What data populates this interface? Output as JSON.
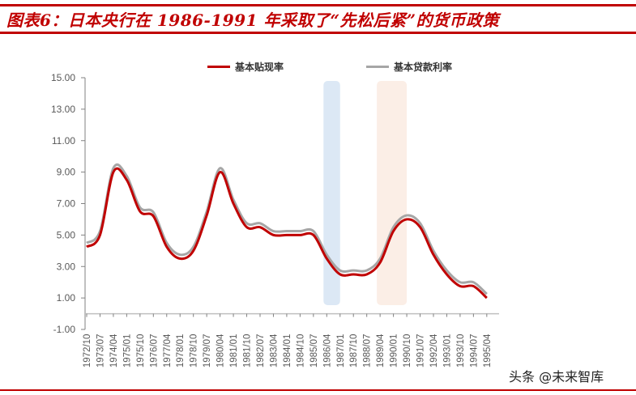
{
  "title": "图表6：日本央行在 1986-1991 年采取了“先松后紧”的货币政策",
  "watermark": "头条 @未来智库",
  "colors": {
    "accent": "#c00000",
    "series1": "#c00000",
    "series2": "#a6a6a6",
    "band_easing": "#dce8f5",
    "band_tightening": "#fbeee6",
    "axis": "#808080",
    "tick_text": "#595959"
  },
  "chart_data": {
    "type": "line",
    "title": "图表6：日本央行在 1986-1991 年采取了“先松后紧”的货币政策",
    "xlabel": "",
    "ylabel": "",
    "ylim": [
      -1,
      15
    ],
    "yticks": [
      "15.00",
      "13.00",
      "11.00",
      "9.00",
      "7.00",
      "5.00",
      "3.00",
      "1.00",
      "-1.00"
    ],
    "grid": false,
    "legend_position": "top",
    "categories": [
      "1972/10",
      "1973/07",
      "1974/04",
      "1975/01",
      "1975/10",
      "1976/07",
      "1977/04",
      "1978/01",
      "1978/10",
      "1979/07",
      "1980/04",
      "1981/01",
      "1981/10",
      "1982/07",
      "1983/04",
      "1984/01",
      "1984/10",
      "1985/07",
      "1986/04",
      "1987/01",
      "1987/10",
      "1988/07",
      "1989/04",
      "1990/01",
      "1990/10",
      "1991/07",
      "1992/04",
      "1993/01",
      "1993/10",
      "1994/07",
      "1995/04"
    ],
    "series": [
      {
        "name": "基本贴现率",
        "color": "#c00000",
        "values": [
          4.25,
          5.0,
          9.0,
          8.5,
          6.5,
          6.2,
          4.25,
          3.5,
          4.0,
          6.25,
          9.0,
          7.0,
          5.5,
          5.5,
          5.0,
          5.0,
          5.0,
          5.0,
          3.5,
          2.5,
          2.5,
          2.5,
          3.25,
          5.25,
          6.0,
          5.5,
          3.75,
          2.5,
          1.75,
          1.75,
          1.0
        ]
      },
      {
        "name": "基本贷款利率",
        "color": "#a6a6a6",
        "values": [
          4.5,
          5.25,
          9.25,
          8.75,
          6.75,
          6.45,
          4.5,
          3.75,
          4.25,
          6.5,
          9.25,
          7.25,
          5.75,
          5.75,
          5.25,
          5.25,
          5.25,
          5.25,
          3.75,
          2.75,
          2.75,
          2.75,
          3.5,
          5.5,
          6.25,
          5.75,
          4.0,
          2.75,
          2.0,
          2.0,
          1.25
        ]
      }
    ],
    "highlight_bands": [
      {
        "label": "easing",
        "from": "1986/04",
        "to": "1987/01",
        "color": "#dce8f5"
      },
      {
        "label": "tightening",
        "from": "1989/04",
        "to": "1990/10",
        "color": "#fbeee6"
      }
    ]
  }
}
